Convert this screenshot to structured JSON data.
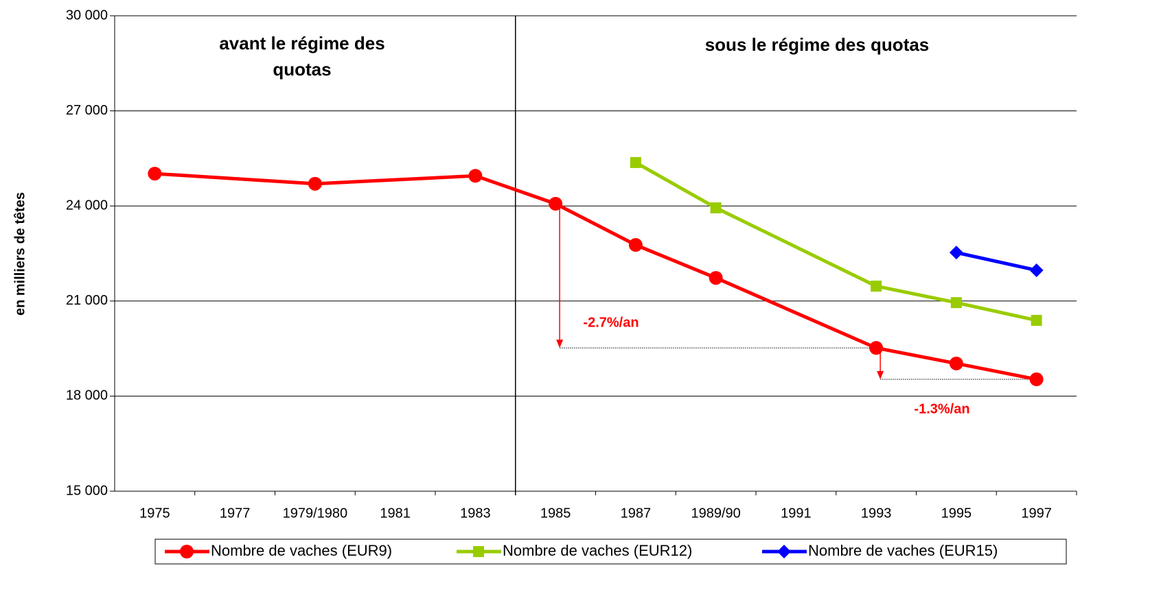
{
  "chart_data": {
    "type": "line",
    "y_label": "en milliers de têtes",
    "categories": [
      "1975",
      "1977",
      "1979/1980",
      "1981",
      "1983",
      "1985",
      "1987",
      "1989/90",
      "1991",
      "1993",
      "1995",
      "1997"
    ],
    "series": [
      {
        "name": "Nombre de vaches (EUR9)",
        "color": "#ff0000",
        "marker": "circle",
        "values": [
          25020,
          null,
          24700,
          null,
          24950,
          24070,
          22770,
          21730,
          null,
          19520,
          19030,
          18530
        ]
      },
      {
        "name": "Nombre de vaches (EUR12)",
        "color": "#99cc00",
        "marker": "square",
        "values": [
          null,
          null,
          null,
          null,
          null,
          null,
          25370,
          23940,
          null,
          21470,
          20950,
          20390
        ]
      },
      {
        "name": "Nombre de vaches (EUR15)",
        "color": "#0000ff",
        "marker": "diamond",
        "values": [
          null,
          null,
          null,
          null,
          null,
          null,
          null,
          null,
          null,
          null,
          22530,
          21970
        ]
      }
    ],
    "ylim": [
      15000,
      30000
    ],
    "yticks": [
      {
        "value": 15000,
        "label": "15 000"
      },
      {
        "value": 18000,
        "label": "18 000"
      },
      {
        "value": 21000,
        "label": "21 000"
      },
      {
        "value": 24000,
        "label": "24 000"
      },
      {
        "value": 27000,
        "label": "27 000"
      },
      {
        "value": 30000,
        "label": "30 000"
      }
    ],
    "grid": true,
    "legend": "bottom",
    "annotations": [
      {
        "lines": [
          "avant le régime des",
          "quotas"
        ]
      },
      {
        "lines": [
          "sous le régime des quotas"
        ]
      },
      {
        "lines": [
          "-2.7%/an"
        ]
      },
      {
        "lines": [
          "-1.3%/an"
        ]
      }
    ]
  }
}
